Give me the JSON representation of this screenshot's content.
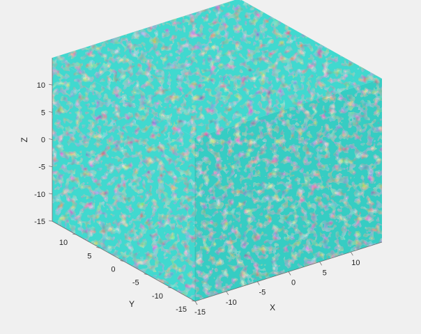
{
  "figure": {
    "background": "#f0f0f0",
    "surface_color": "#40d9cf",
    "shadow_color": "#0c3a38",
    "highlight_color": "#b8fffa"
  },
  "chart_data": {
    "type": "isosurface-3d",
    "title": "",
    "xlabel": "X",
    "ylabel": "Y",
    "zlabel": "Z",
    "xlim": [
      -15,
      15
    ],
    "ylim": [
      -15,
      15
    ],
    "zlim": [
      -15,
      15
    ],
    "x_ticks": [
      "-15",
      "-10",
      "-5",
      "0",
      "5",
      "10"
    ],
    "y_ticks": [
      "-15",
      "-10",
      "-5",
      "0",
      "5",
      "10"
    ],
    "z_ticks": [
      "-15",
      "-10",
      "-5",
      "0",
      "5",
      "10"
    ],
    "grid": false,
    "legend": "none"
  }
}
